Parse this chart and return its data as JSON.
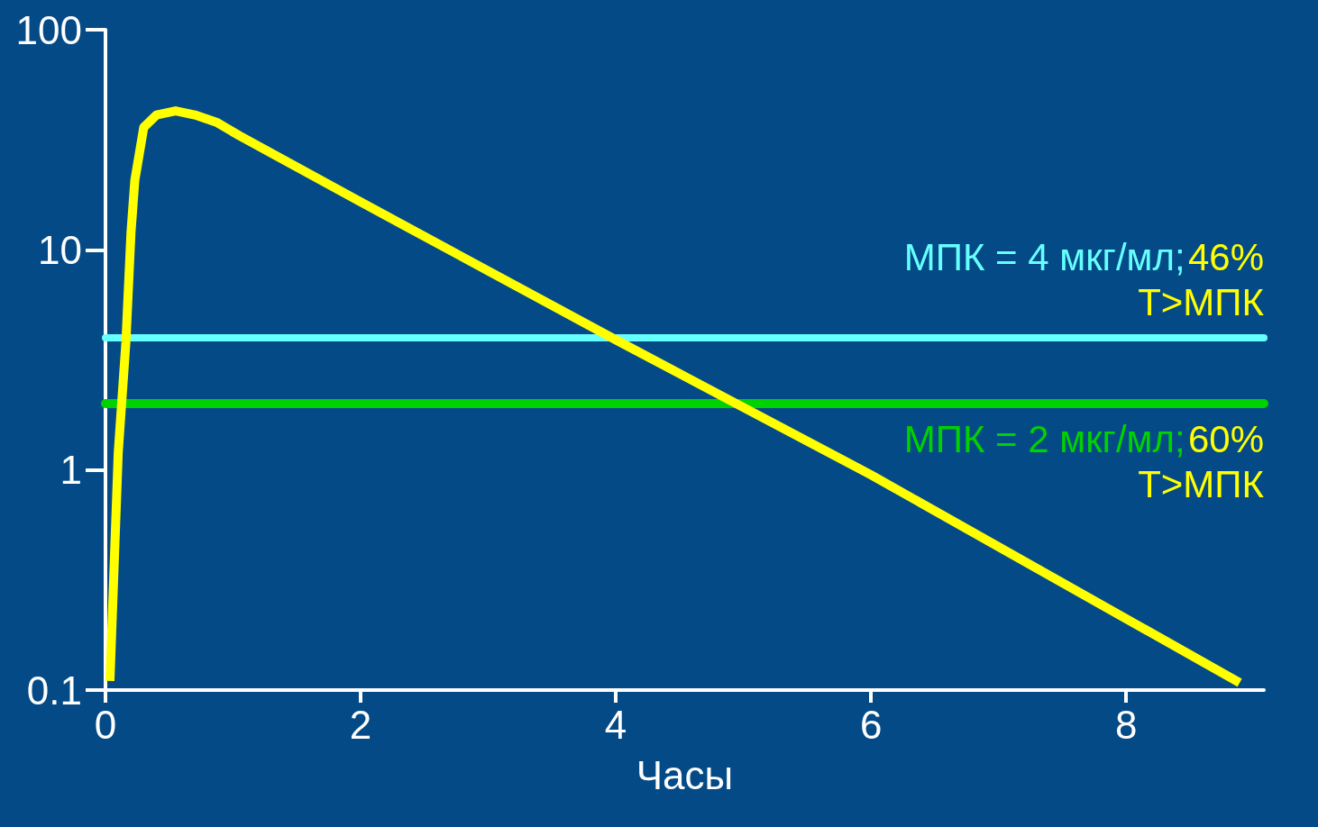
{
  "chart_data": {
    "type": "line",
    "xlabel": "Часы",
    "log": "y",
    "xlim": [
      0,
      9.08
    ],
    "xticks": [
      0,
      2,
      4,
      6,
      8
    ],
    "ylim": [
      0.1,
      100
    ],
    "yticks": [
      0.1,
      1,
      10,
      100
    ],
    "grid": false,
    "marker": "none",
    "line_style": "solid",
    "series": [
      {
        "color": "#ffff00",
        "x": [
          0.035,
          0.1,
          0.16,
          0.2,
          0.23,
          0.3,
          0.4,
          0.55,
          0.7,
          0.87,
          1.05,
          2,
          4,
          6,
          8.89
        ],
        "values": [
          0.11,
          1.2,
          3.8,
          12,
          20.7,
          36,
          41,
          42.8,
          41,
          38,
          33,
          16.5,
          3.9,
          0.95,
          0.108
        ]
      }
    ],
    "ref_lines": [
      {
        "axis": "y",
        "value": 4,
        "label": "МПК = 4 мкг/мл;",
        "color": "#66ffff"
      },
      {
        "axis": "y",
        "value": 2,
        "label": "МПК = 2 мкг/мл;",
        "color": "#00d100"
      }
    ],
    "annotations": [
      "46% T>МПК",
      "60% T>МПК"
    ]
  }
}
